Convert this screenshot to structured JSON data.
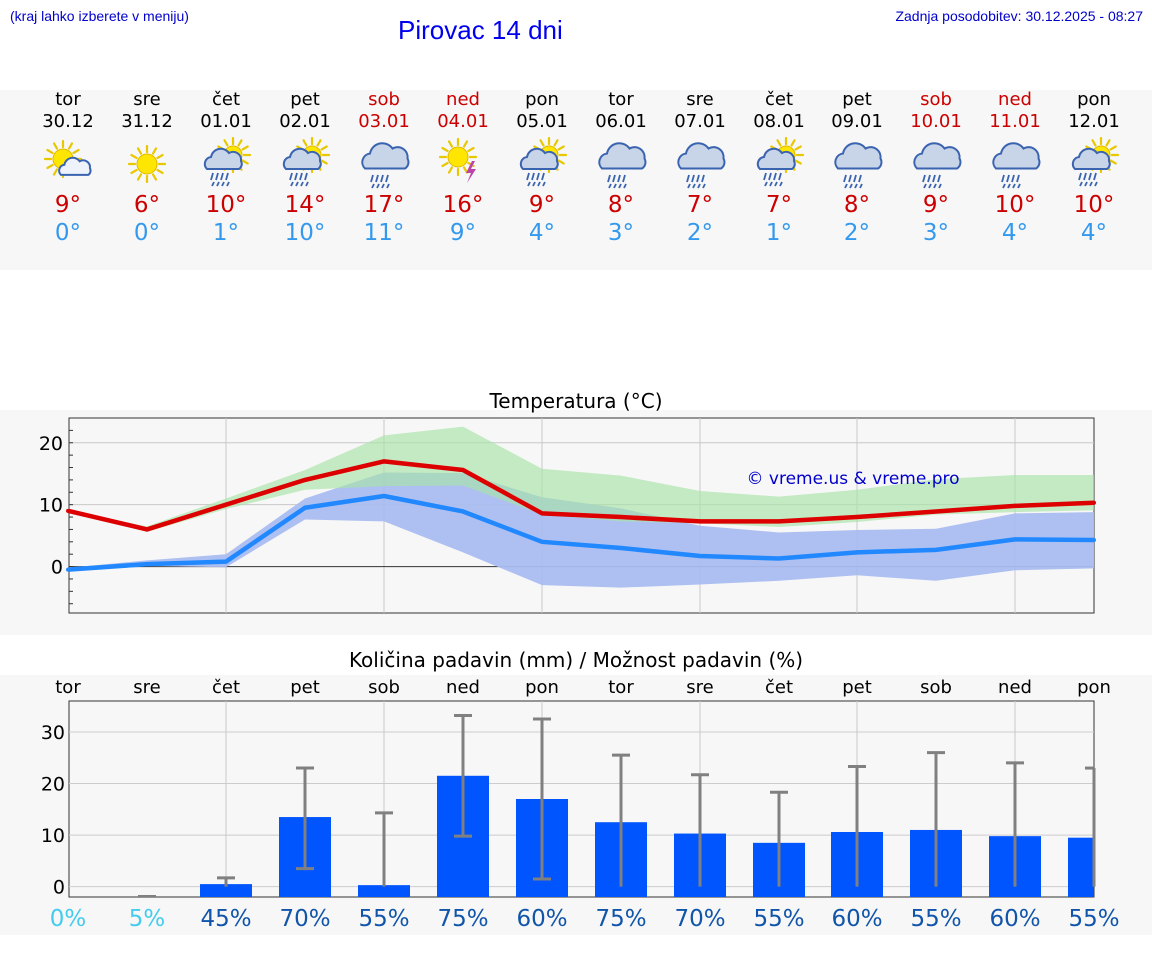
{
  "header": {
    "menu_hint": "(kraj lahko izberete v meniju)",
    "title": "Pirovac 14 dni",
    "updated": "Zadnja posodobitev: 30.12.2025 - 08:27"
  },
  "days": [
    {
      "name": "tor",
      "date": "30.12",
      "weekend": false,
      "icon": "sun-cloud-icon",
      "max": "9°",
      "min": "0°"
    },
    {
      "name": "sre",
      "date": "31.12",
      "weekend": false,
      "icon": "sun-icon",
      "max": "6°",
      "min": "0°"
    },
    {
      "name": "čet",
      "date": "01.01",
      "weekend": false,
      "icon": "sun-cloud-rain-icon",
      "max": "10°",
      "min": "1°"
    },
    {
      "name": "pet",
      "date": "02.01",
      "weekend": false,
      "icon": "sun-cloud-rain-icon",
      "max": "14°",
      "min": "10°"
    },
    {
      "name": "sob",
      "date": "03.01",
      "weekend": true,
      "icon": "cloud-rain-icon",
      "max": "17°",
      "min": "11°"
    },
    {
      "name": "ned",
      "date": "04.01",
      "weekend": true,
      "icon": "sun-thunder-icon",
      "max": "16°",
      "min": "9°"
    },
    {
      "name": "pon",
      "date": "05.01",
      "weekend": false,
      "icon": "sun-cloud-rain-icon",
      "max": "9°",
      "min": "4°"
    },
    {
      "name": "tor",
      "date": "06.01",
      "weekend": false,
      "icon": "cloud-rain-icon",
      "max": "8°",
      "min": "3°"
    },
    {
      "name": "sre",
      "date": "07.01",
      "weekend": false,
      "icon": "cloud-rain-icon",
      "max": "7°",
      "min": "2°"
    },
    {
      "name": "čet",
      "date": "08.01",
      "weekend": false,
      "icon": "sun-cloud-rain-icon",
      "max": "7°",
      "min": "1°"
    },
    {
      "name": "pet",
      "date": "09.01",
      "weekend": false,
      "icon": "cloud-rain-icon",
      "max": "8°",
      "min": "2°"
    },
    {
      "name": "sob",
      "date": "10.01",
      "weekend": true,
      "icon": "cloud-rain-icon",
      "max": "9°",
      "min": "3°"
    },
    {
      "name": "ned",
      "date": "11.01",
      "weekend": true,
      "icon": "cloud-rain-icon",
      "max": "10°",
      "min": "4°"
    },
    {
      "name": "pon",
      "date": "12.01",
      "weekend": false,
      "icon": "sun-cloud-rain-icon",
      "max": "10°",
      "min": "4°"
    }
  ],
  "colors": {
    "max": "#dd0000",
    "min": "#2288ff",
    "max_band": "#a8e4a8",
    "min_band": "#aabdf0",
    "overlap_band": "#7cc6a8",
    "bar": "#0055ff",
    "whisker": "#808080",
    "chance_low": "#44ccee",
    "chance_high": "#1155aa"
  },
  "chart_data": [
    {
      "type": "line",
      "title": "Temperatura (°C)",
      "watermark": "© vreme.us & vreme.pro",
      "categories": [
        "30.12",
        "31.12",
        "01.01",
        "02.01",
        "03.01",
        "04.01",
        "05.01",
        "06.01",
        "07.01",
        "08.01",
        "09.01",
        "10.01",
        "11.01",
        "12.01"
      ],
      "ylim": [
        -7.5,
        24
      ],
      "yticks": [
        0,
        10,
        20
      ],
      "series": [
        {
          "name": "max",
          "values": [
            9,
            6,
            10,
            14,
            17,
            15.6,
            8.6,
            8,
            7.3,
            7.3,
            8,
            8.9,
            9.8,
            10.3
          ],
          "band_low": [
            9,
            5.6,
            9.3,
            12.4,
            13,
            13.1,
            8.4,
            7.3,
            7,
            6.4,
            7.2,
            8.4,
            8.8,
            9.1
          ],
          "band_high": [
            9.1,
            6.5,
            11,
            15.6,
            21.2,
            22.6,
            15.8,
            14.7,
            12.2,
            11.3,
            12.4,
            14.1,
            14.8,
            14.8
          ]
        },
        {
          "name": "min",
          "values": [
            -0.5,
            0.4,
            0.8,
            9.5,
            11.4,
            8.9,
            4,
            3,
            1.7,
            1.3,
            2.3,
            2.7,
            4.4,
            4.3
          ],
          "band_low": [
            -0.8,
            0.1,
            -0.1,
            7.6,
            7.3,
            2.3,
            -3,
            -3.4,
            -2.9,
            -2.3,
            -1.4,
            -2.3,
            -0.6,
            -0.3
          ],
          "band_high": [
            -0.2,
            1,
            2,
            11,
            15.2,
            15.1,
            11.2,
            9.4,
            6.6,
            5.5,
            5.9,
            6.1,
            8.6,
            8.8
          ]
        }
      ]
    },
    {
      "type": "bar",
      "title": "Količina padavin (mm) / Možnost padavin (%)",
      "categories": [
        "tor",
        "sre",
        "čet",
        "pet",
        "sob",
        "ned",
        "pon",
        "tor",
        "sre",
        "čet",
        "pet",
        "sob",
        "ned",
        "pon"
      ],
      "ylim": [
        -2,
        36
      ],
      "yticks": [
        0,
        10,
        20,
        30
      ],
      "values": [
        0,
        0,
        0.5,
        13.5,
        0.3,
        21.5,
        17,
        12.5,
        10.3,
        8.5,
        10.6,
        11,
        9.8,
        9.5
      ],
      "error_low": [
        0,
        0,
        0,
        3.5,
        0,
        9.8,
        1.5,
        0,
        0,
        0,
        0,
        0,
        0,
        0
      ],
      "error_high": [
        0,
        0,
        1.7,
        23,
        14.3,
        33.2,
        32.5,
        25.5,
        21.7,
        18.3,
        23.3,
        26,
        24,
        23
      ],
      "chance": [
        "0%",
        "5%",
        "45%",
        "70%",
        "55%",
        "75%",
        "60%",
        "75%",
        "70%",
        "55%",
        "60%",
        "55%",
        "60%",
        "55%"
      ]
    }
  ]
}
